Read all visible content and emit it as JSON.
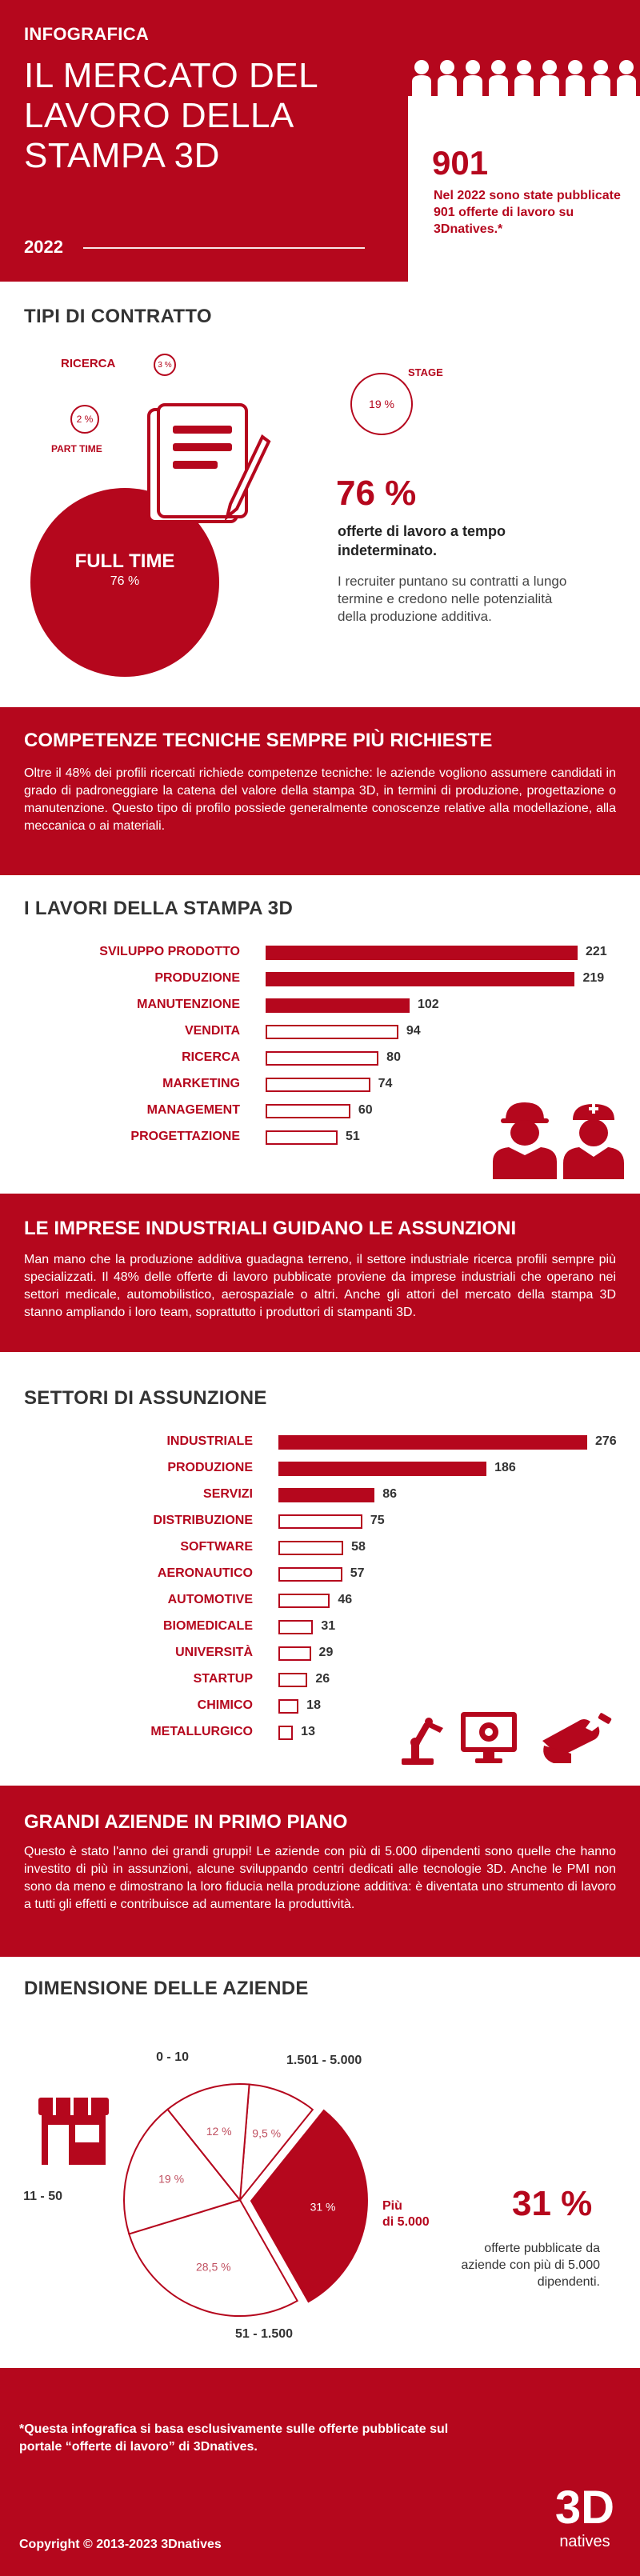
{
  "header": {
    "kicker": "INFOGRAFICA",
    "title": "IL MERCATO DEL LAVORO DELLA STAMPA 3D",
    "year": "2022",
    "stat_number": "901",
    "stat_text": "Nel 2022 sono state pubblicate 901 offerte di lavoro su 3Dnatives.*"
  },
  "contracts": {
    "title": "TIPI DI CONTRATTO",
    "items": [
      {
        "label": "RICERCA",
        "value": "3 %"
      },
      {
        "label": "PART TIME",
        "value": "2 %"
      },
      {
        "label": "STAGE",
        "value": "19 %"
      },
      {
        "label": "FULL TIME",
        "value": "76 %"
      }
    ],
    "big_number": "76 %",
    "big_caption": "offerte di lavoro a tempo indeterminato.",
    "note": "I recruiter puntano su contratti a lungo termine e credono nelle potenzialità della produzione additiva."
  },
  "skills_band": {
    "title": "COMPETENZE TECNICHE SEMPRE PIÙ RICHIESTE",
    "text": "Oltre il 48% dei profili ricercati richiede competenze tecniche: le aziende vogliono assumere candidati in grado di padroneggiare la catena del valore della stampa 3D, in termini di produzione, progettazione o manutenzione. Questo tipo di profilo possiede generalmente conoscenze relative alla modellazione, alla meccanica o ai materiali."
  },
  "jobs_chart_title": "I LAVORI DELLA STAMPA 3D",
  "industry_band": {
    "title": "LE IMPRESE INDUSTRIALI GUIDANO LE ASSUNZIONI",
    "text": "Man mano che la produzione additiva guadagna terreno, il settore industriale ricerca profili sempre più specializzati. Il 48% delle offerte di lavoro pubblicate proviene da imprese industriali che operano nei settori medicale, automobilistico, aerospaziale o altri. Anche gli attori del mercato della stampa 3D stanno ampliando i loro team, soprattutto i produttori di stampanti 3D."
  },
  "sectors_chart_title": "SETTORI DI ASSUNZIONE",
  "big_companies_band": {
    "title": "GRANDI AZIENDE IN PRIMO PIANO",
    "text": "Questo è stato l'anno dei grandi gruppi! Le aziende con più di 5.000 dipendenti sono quelle che hanno investito di più in assunzioni, alcune sviluppando centri dedicati alle tecnologie 3D. Anche le PMI non sono da meno e dimostrano la loro fiducia nella produzione additiva: è diventata uno strumento di lavoro a tutti gli effetti e contribuisce ad aumentare la produttività."
  },
  "company_size": {
    "title": "DIMENSIONE DELLE AZIENDE",
    "big_number": "31 %",
    "caption": "offerte pubblicate da aziende con più di 5.000 dipendenti."
  },
  "footer": {
    "note": "*Questa infografica si basa esclusivamente sulle offerte pubblicate sul portale “offerte di lavoro” di 3Dnatives.",
    "copyright": "Copyright © 2013-2023 3Dnatives",
    "logo_main": "3D",
    "logo_sub": "natives"
  },
  "colors": {
    "accent": "#b5071d",
    "text": "#333333"
  },
  "icons": [
    "people-silhouettes-icon",
    "document-pen-icon",
    "worker-helmet-icon",
    "nurse-icon",
    "robot-arm-icon",
    "monitor-gear-icon",
    "wrench-hand-icon",
    "shop-icon"
  ],
  "chart_data": [
    {
      "type": "bar",
      "orientation": "horizontal",
      "title": "I LAVORI DELLA STAMPA 3D",
      "categories": [
        "SVILUPPO PRODOTTO",
        "PRODUZIONE",
        "MANUTENZIONE",
        "VENDITA",
        "RICERCA",
        "MARKETING",
        "MANAGEMENT",
        "PROGETTAZIONE"
      ],
      "values": [
        221,
        219,
        102,
        94,
        80,
        74,
        60,
        51
      ],
      "filled": [
        true,
        true,
        true,
        false,
        false,
        false,
        false,
        false
      ]
    },
    {
      "type": "bar",
      "orientation": "horizontal",
      "title": "SETTORI DI ASSUNZIONE",
      "categories": [
        "INDUSTRIALE",
        "PRODUZIONE",
        "SERVIZI",
        "DISTRIBUZIONE",
        "SOFTWARE",
        "AERONAUTICO",
        "AUTOMOTIVE",
        "BIOMEDICALE",
        "UNIVERSITÀ",
        "STARTUP",
        "CHIMICO",
        "METALLURGICO"
      ],
      "values": [
        276,
        186,
        86,
        75,
        58,
        57,
        46,
        31,
        29,
        26,
        18,
        13
      ],
      "filled": [
        true,
        true,
        true,
        false,
        false,
        false,
        false,
        false,
        false,
        false,
        false,
        false
      ]
    },
    {
      "type": "pie",
      "title": "DIMENSIONE DELLE AZIENDE",
      "categories": [
        "Più di 5.000",
        "51 - 1.500",
        "11 - 50",
        "0 - 10",
        "1.501 - 5.000"
      ],
      "values": [
        31,
        28.5,
        19,
        12,
        9.5
      ],
      "value_labels": [
        "31 %",
        "28,5 %",
        "19 %",
        "12 %",
        "9,5 %"
      ],
      "highlight": "Più di 5.000"
    }
  ]
}
